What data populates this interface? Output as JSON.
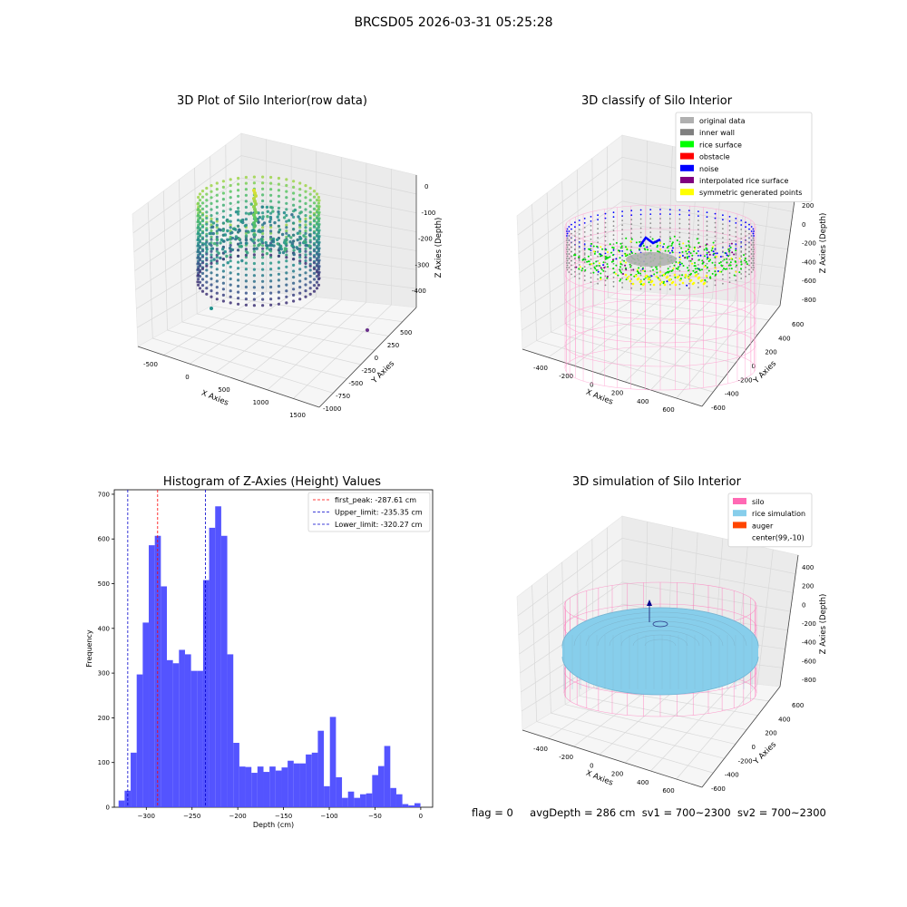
{
  "suptitle": "BRCSD05 2026-03-31 05:25:28",
  "status": {
    "flag": "flag = 0",
    "avg": "avgDepth = 286 cm",
    "sv1": "sv1 = 700~2300",
    "sv2": "sv2 = 700~2300"
  },
  "chart_data": [
    {
      "type": "scatter3d",
      "title": "3D Plot of Silo Interior(row data)",
      "xlabel": "X Axies",
      "ylabel": "Y Axies",
      "zlabel": "Z Axies (Depth)",
      "xticks": [
        "-500",
        "0",
        "500",
        "1000",
        "1500"
      ],
      "yticks": [
        "500",
        "250",
        "0",
        "-250",
        "-500",
        "-750",
        "-1000"
      ],
      "zticks": [
        "0",
        "-100",
        "-200",
        "-300",
        "-400"
      ],
      "colormap": "viridis"
    },
    {
      "type": "scatter3d",
      "title": "3D classify of Silo Interior",
      "xlabel": "X Axies",
      "ylabel": "Y Axies",
      "zlabel": "Z Axies (Depth)",
      "xticks": [
        "-400",
        "-200",
        "0",
        "200",
        "400",
        "600"
      ],
      "yticks": [
        "600",
        "400",
        "200",
        "0",
        "-200",
        "-400",
        "-600"
      ],
      "zticks": [
        "200",
        "0",
        "-200",
        "-400",
        "-600",
        "-800"
      ],
      "legend_position": "top-right",
      "legend": [
        {
          "label": "original data",
          "color": "#b0b0b0"
        },
        {
          "label": "inner wall",
          "color": "#808080"
        },
        {
          "label": "rice surface",
          "color": "#00ff00"
        },
        {
          "label": "obstacle",
          "color": "#ff0000"
        },
        {
          "label": "noise",
          "color": "#0000ff"
        },
        {
          "label": "interpolated rice surface",
          "color": "#800080"
        },
        {
          "label": "symmetric generated points",
          "color": "#ffff00"
        }
      ]
    },
    {
      "type": "bar",
      "title": "Histogram of Z-Axies (Height) Values",
      "xlabel": "Depth (cm)",
      "ylabel": "Frequency",
      "xlim": [
        -335,
        13
      ],
      "ylim": [
        0,
        710
      ],
      "xticks": [
        -300,
        -250,
        -200,
        -150,
        -100,
        -50,
        0
      ],
      "yticks": [
        0,
        100,
        200,
        300,
        400,
        500,
        600,
        700
      ],
      "bar_color": "#4b4bff",
      "bins": {
        "start": -330.3,
        "width": 6.6,
        "counts": [
          15,
          37,
          122,
          297,
          413,
          586,
          607,
          494,
          329,
          322,
          352,
          342,
          305,
          305,
          508,
          625,
          673,
          607,
          342,
          144,
          91,
          90,
          77,
          91,
          79,
          91,
          82,
          89,
          104,
          98,
          98,
          118,
          122,
          171,
          47,
          202,
          67,
          21,
          35,
          21,
          29,
          31,
          72,
          92,
          137,
          43,
          29,
          7,
          4,
          9
        ]
      },
      "lines": [
        {
          "label": "first_peak: -287.61 cm",
          "x": -287.61,
          "color": "#ff0000"
        },
        {
          "label": "Upper_limit: -235.35 cm",
          "x": -235.35,
          "color": "#0000cc"
        },
        {
          "label": "Lower_limit: -320.27 cm",
          "x": -320.27,
          "color": "#0000cc"
        }
      ],
      "legend_position": "top-right"
    },
    {
      "type": "scatter3d",
      "title": "3D simulation of Silo Interior",
      "xlabel": "X Axies",
      "ylabel": "Y Axies",
      "zlabel": "Z Axies (Depth)",
      "xticks": [
        "-400",
        "-200",
        "0",
        "200",
        "400",
        "600"
      ],
      "yticks": [
        "600",
        "400",
        "200",
        "0",
        "-200",
        "-400",
        "-600"
      ],
      "zticks": [
        "400",
        "200",
        "0",
        "-200",
        "-400",
        "-600",
        "-800"
      ],
      "legend_position": "top-right",
      "legend": [
        {
          "label": "silo",
          "color": "#ff69b4"
        },
        {
          "label": "rice simulation",
          "color": "#87ceeb"
        },
        {
          "label": "auger",
          "color": "#ff4500"
        },
        {
          "label": "center(99,-10)",
          "color": ""
        }
      ]
    }
  ]
}
